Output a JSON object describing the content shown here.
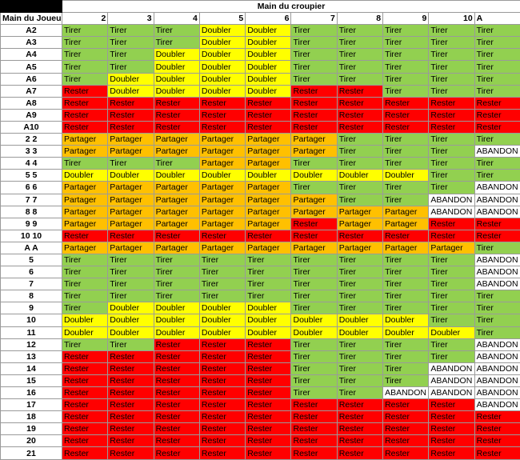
{
  "title": "Main du croupier",
  "player_header": "Main du Joueur",
  "dealer_cards": [
    "2",
    "3",
    "4",
    "5",
    "6",
    "7",
    "8",
    "9",
    "10",
    "A"
  ],
  "legend": {
    "T": "Tirer",
    "D": "Doubler",
    "R": "Rester",
    "P": "Partager",
    "A": "ABANDON"
  },
  "colors": {
    "T": "#92d050",
    "D": "#ffff00",
    "R": "#ff0000",
    "P": "#ffc000",
    "A": "#ffffff"
  },
  "rows": [
    {
      "hand": "A2",
      "codes": [
        "T",
        "T",
        "T",
        "D",
        "D",
        "T",
        "T",
        "T",
        "T",
        "T"
      ]
    },
    {
      "hand": "A3",
      "codes": [
        "T",
        "T",
        "T",
        "D",
        "D",
        "T",
        "T",
        "T",
        "T",
        "T"
      ]
    },
    {
      "hand": "A4",
      "codes": [
        "T",
        "T",
        "D",
        "D",
        "D",
        "T",
        "T",
        "T",
        "T",
        "T"
      ]
    },
    {
      "hand": "A5",
      "codes": [
        "T",
        "T",
        "D",
        "D",
        "D",
        "T",
        "T",
        "T",
        "T",
        "T"
      ]
    },
    {
      "hand": "A6",
      "codes": [
        "T",
        "D",
        "D",
        "D",
        "D",
        "T",
        "T",
        "T",
        "T",
        "T"
      ]
    },
    {
      "hand": "A7",
      "codes": [
        "R",
        "D",
        "D",
        "D",
        "D",
        "R",
        "R",
        "T",
        "T",
        "T"
      ]
    },
    {
      "hand": "A8",
      "codes": [
        "R",
        "R",
        "R",
        "R",
        "R",
        "R",
        "R",
        "R",
        "R",
        "R"
      ]
    },
    {
      "hand": "A9",
      "codes": [
        "R",
        "R",
        "R",
        "R",
        "R",
        "R",
        "R",
        "R",
        "R",
        "R"
      ]
    },
    {
      "hand": "A10",
      "codes": [
        "R",
        "R",
        "R",
        "R",
        "R",
        "R",
        "R",
        "R",
        "R",
        "R"
      ]
    },
    {
      "hand": "2 2",
      "codes": [
        "P",
        "P",
        "P",
        "P",
        "P",
        "P",
        "T",
        "T",
        "T",
        "T"
      ]
    },
    {
      "hand": "3 3",
      "codes": [
        "P",
        "P",
        "P",
        "P",
        "P",
        "P",
        "T",
        "T",
        "T",
        "A"
      ]
    },
    {
      "hand": "4 4",
      "codes": [
        "T",
        "T",
        "T",
        "P",
        "P",
        "T",
        "T",
        "T",
        "T",
        "T"
      ]
    },
    {
      "hand": "5 5",
      "codes": [
        "D",
        "D",
        "D",
        "D",
        "D",
        "D",
        "D",
        "D",
        "T",
        "T"
      ]
    },
    {
      "hand": "6 6",
      "codes": [
        "P",
        "P",
        "P",
        "P",
        "P",
        "T",
        "T",
        "T",
        "T",
        "A"
      ]
    },
    {
      "hand": "7 7",
      "codes": [
        "P",
        "P",
        "P",
        "P",
        "P",
        "P",
        "T",
        "T",
        "A",
        "A"
      ]
    },
    {
      "hand": "8 8",
      "codes": [
        "P",
        "P",
        "P",
        "P",
        "P",
        "P",
        "P",
        "P",
        "A",
        "A"
      ]
    },
    {
      "hand": "9 9",
      "codes": [
        "P",
        "P",
        "P",
        "P",
        "P",
        "R",
        "P",
        "P",
        "R",
        "R"
      ]
    },
    {
      "hand": "10 10",
      "codes": [
        "R",
        "R",
        "R",
        "R",
        "R",
        "R",
        "R",
        "R",
        "R",
        "R"
      ]
    },
    {
      "hand": "A A",
      "codes": [
        "P",
        "P",
        "P",
        "P",
        "P",
        "P",
        "P",
        "P",
        "P",
        "T"
      ]
    },
    {
      "hand": "5",
      "codes": [
        "T",
        "T",
        "T",
        "T",
        "T",
        "T",
        "T",
        "T",
        "T",
        "A"
      ]
    },
    {
      "hand": "6",
      "codes": [
        "T",
        "T",
        "T",
        "T",
        "T",
        "T",
        "T",
        "T",
        "T",
        "A"
      ]
    },
    {
      "hand": "7",
      "codes": [
        "T",
        "T",
        "T",
        "T",
        "T",
        "T",
        "T",
        "T",
        "T",
        "A"
      ]
    },
    {
      "hand": "8",
      "codes": [
        "T",
        "T",
        "T",
        "T",
        "T",
        "T",
        "T",
        "T",
        "T",
        "T"
      ]
    },
    {
      "hand": "9",
      "codes": [
        "T",
        "D",
        "D",
        "D",
        "D",
        "T",
        "T",
        "T",
        "T",
        "T"
      ]
    },
    {
      "hand": "10",
      "codes": [
        "D",
        "D",
        "D",
        "D",
        "D",
        "D",
        "D",
        "D",
        "T",
        "T"
      ]
    },
    {
      "hand": "11",
      "codes": [
        "D",
        "D",
        "D",
        "D",
        "D",
        "D",
        "D",
        "D",
        "D",
        "T"
      ]
    },
    {
      "hand": "12",
      "codes": [
        "T",
        "T",
        "R",
        "R",
        "R",
        "T",
        "T",
        "T",
        "T",
        "A"
      ]
    },
    {
      "hand": "13",
      "codes": [
        "R",
        "R",
        "R",
        "R",
        "R",
        "T",
        "T",
        "T",
        "T",
        "A"
      ]
    },
    {
      "hand": "14",
      "codes": [
        "R",
        "R",
        "R",
        "R",
        "R",
        "T",
        "T",
        "T",
        "A",
        "A"
      ]
    },
    {
      "hand": "15",
      "codes": [
        "R",
        "R",
        "R",
        "R",
        "R",
        "T",
        "T",
        "T",
        "A",
        "A"
      ]
    },
    {
      "hand": "16",
      "codes": [
        "R",
        "R",
        "R",
        "R",
        "R",
        "T",
        "T",
        "A",
        "A",
        "A"
      ]
    },
    {
      "hand": "17",
      "codes": [
        "R",
        "R",
        "R",
        "R",
        "R",
        "R",
        "R",
        "R",
        "R",
        "A"
      ]
    },
    {
      "hand": "18",
      "codes": [
        "R",
        "R",
        "R",
        "R",
        "R",
        "R",
        "R",
        "R",
        "R",
        "R"
      ]
    },
    {
      "hand": "19",
      "codes": [
        "R",
        "R",
        "R",
        "R",
        "R",
        "R",
        "R",
        "R",
        "R",
        "R"
      ]
    },
    {
      "hand": "20",
      "codes": [
        "R",
        "R",
        "R",
        "R",
        "R",
        "R",
        "R",
        "R",
        "R",
        "R"
      ]
    },
    {
      "hand": "21",
      "codes": [
        "R",
        "R",
        "R",
        "R",
        "R",
        "R",
        "R",
        "R",
        "R",
        "R"
      ]
    }
  ]
}
